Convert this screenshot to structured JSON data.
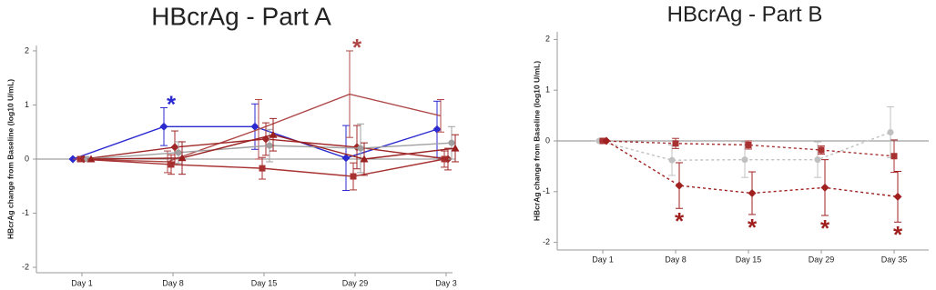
{
  "chart_data": [
    {
      "type": "line",
      "title": "HBcrAg - Part A",
      "y_label": "HBcrAg change from Baseline (log10 U/mL)",
      "categories": [
        "Day 1",
        "Day 8",
        "Day 15",
        "Day 29",
        "Day 3"
      ],
      "ylim": [
        -2.1,
        2.1
      ],
      "yticks": [
        2,
        1,
        0,
        -1,
        -2
      ],
      "series": [
        {
          "color": "#2a2ad0",
          "marker": "diamond",
          "dashed": false,
          "values": [
            0,
            0.6,
            0.6,
            0.02,
            0.55
          ],
          "errors": [
            0,
            0.35,
            0.42,
            0.6,
            0.52
          ],
          "annotations": [
            null,
            "*",
            null,
            null,
            null
          ]
        },
        {
          "color": "#b04848",
          "marker": null,
          "dashed": false,
          "values": [
            0,
            -0.05,
            0.55,
            1.2,
            0.8
          ],
          "errors": [
            0,
            0.2,
            0.55,
            0.8,
            0.3
          ],
          "annotations": [
            null,
            null,
            null,
            "*",
            null
          ]
        },
        {
          "color": "#a83232",
          "marker": "square",
          "dashed": false,
          "values": [
            0,
            -0.1,
            -0.17,
            -0.32,
            0
          ],
          "errors": [
            0,
            0.18,
            0.2,
            0.25,
            0.15
          ],
          "annotations": [
            null,
            null,
            null,
            null,
            null
          ]
        },
        {
          "color": "#a02828",
          "marker": "diamond",
          "dashed": false,
          "values": [
            0,
            0.22,
            0.37,
            0.22,
            0
          ],
          "errors": [
            0,
            0.3,
            0.3,
            0.4,
            0.2
          ],
          "annotations": [
            null,
            null,
            null,
            null,
            null
          ]
        },
        {
          "color": "#a0a0a0",
          "marker": "circle",
          "dashed": false,
          "values": [
            0,
            0.12,
            0.25,
            0.2,
            0.3
          ],
          "errors": [
            0,
            0.2,
            0.3,
            0.45,
            0.3
          ],
          "annotations": [
            null,
            null,
            null,
            null,
            null
          ]
        },
        {
          "color": "#9a2020",
          "marker": "triangle",
          "dashed": false,
          "values": [
            0,
            0.02,
            0.45,
            0,
            0.2
          ],
          "errors": [
            0,
            0.3,
            0.3,
            0.3,
            0.25
          ],
          "annotations": [
            null,
            null,
            null,
            null,
            null
          ]
        }
      ]
    },
    {
      "type": "line",
      "title": "HBcrAg - Part B",
      "y_label": "HBcrAg change from Baseline (log10 U/mL)",
      "categories": [
        "Day 1",
        "Day 8",
        "Day 15",
        "Day 29",
        "Day 35"
      ],
      "ylim": [
        -2.15,
        2.15
      ],
      "yticks": [
        2,
        1,
        0,
        -1,
        -2
      ],
      "series": [
        {
          "color": "#c0c0c0",
          "marker": "circle",
          "dashed": true,
          "values": [
            0,
            -0.38,
            -0.37,
            -0.37,
            0.17
          ],
          "errors": [
            0,
            0.3,
            0.35,
            0.35,
            0.5
          ],
          "annotations": [
            null,
            null,
            null,
            null,
            null
          ]
        },
        {
          "color": "#a83232",
          "marker": "square",
          "dashed": true,
          "values": [
            0,
            -0.05,
            -0.08,
            -0.18,
            -0.3
          ],
          "errors": [
            0,
            0.1,
            0.08,
            0.08,
            0.32
          ],
          "annotations": [
            null,
            null,
            null,
            null,
            null
          ]
        },
        {
          "color": "#a02020",
          "marker": "diamond",
          "dashed": true,
          "values": [
            0,
            -0.88,
            -1.03,
            -0.92,
            -1.1
          ],
          "errors": [
            0,
            0.45,
            0.42,
            0.55,
            0.5
          ],
          "annotations": [
            null,
            "*",
            "*",
            "*",
            "*"
          ]
        }
      ]
    }
  ]
}
